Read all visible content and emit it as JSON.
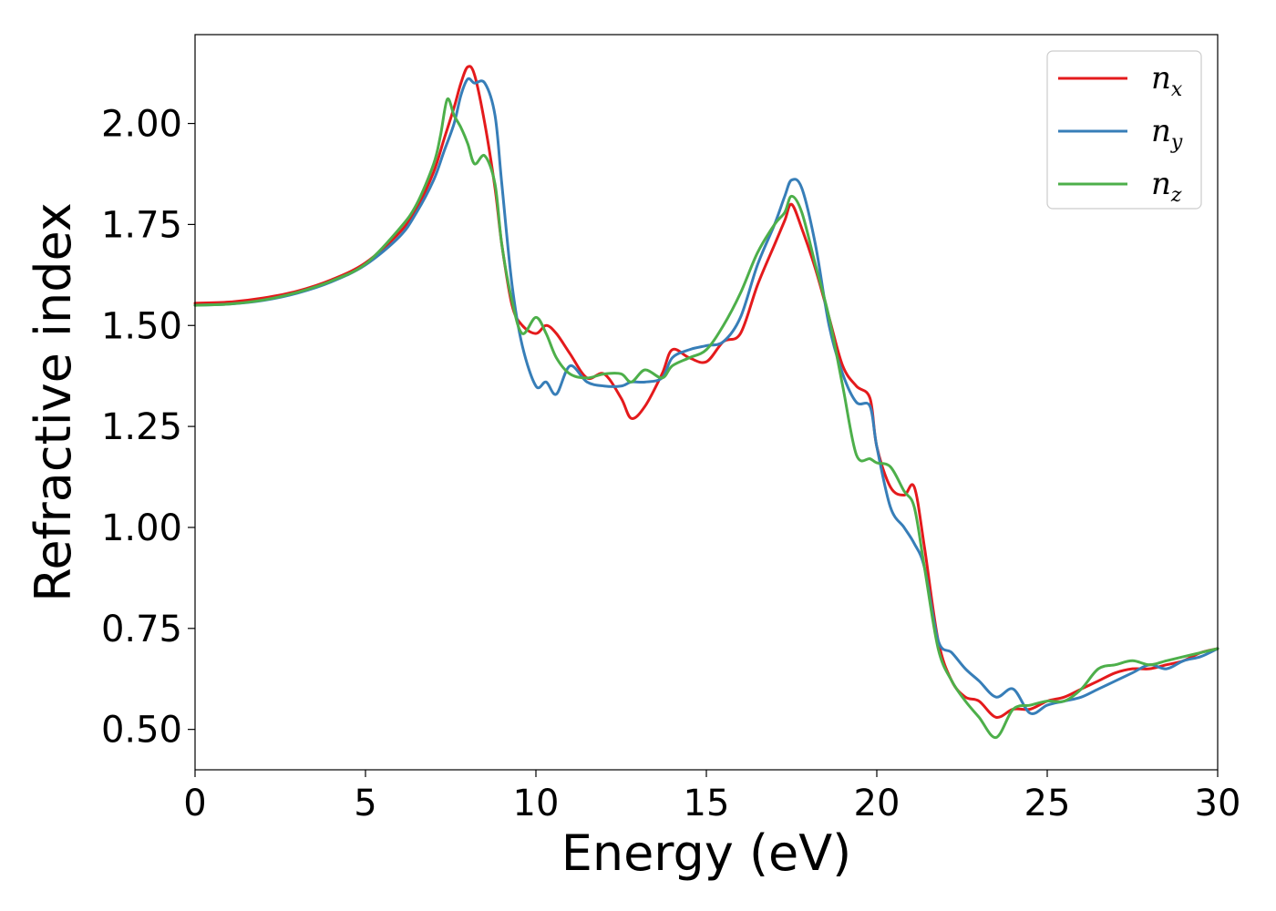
{
  "chart_data": {
    "type": "line",
    "xlabel": "Energy (eV)",
    "ylabel": "Refractive index",
    "xlim": [
      0,
      30
    ],
    "ylim": [
      0.4,
      2.22
    ],
    "xticks": [
      0,
      5,
      10,
      15,
      20,
      25,
      30
    ],
    "xtick_labels": [
      "0",
      "5",
      "10",
      "15",
      "20",
      "25",
      "30"
    ],
    "yticks": [
      0.5,
      0.75,
      1.0,
      1.25,
      1.5,
      1.75,
      2.0
    ],
    "ytick_labels": [
      "0.50",
      "0.75",
      "1.00",
      "1.25",
      "1.50",
      "1.75",
      "2.00"
    ],
    "grid": false,
    "legend_position": "top-right",
    "series": [
      {
        "name": "n",
        "subscript": "x",
        "color": "#e41a1c",
        "x": [
          0,
          1,
          2,
          3,
          4,
          5,
          6,
          6.5,
          7,
          7.3,
          7.6,
          7.8,
          8.0,
          8.2,
          8.5,
          8.8,
          9.0,
          9.3,
          9.6,
          10.0,
          10.3,
          10.6,
          11.0,
          11.5,
          12.0,
          12.5,
          12.8,
          13.2,
          13.7,
          14.0,
          14.5,
          15.0,
          15.5,
          16.0,
          16.5,
          17.0,
          17.3,
          17.5,
          17.8,
          18.2,
          18.6,
          19.0,
          19.4,
          19.8,
          20.0,
          20.4,
          20.8,
          21.1,
          21.4,
          21.8,
          22.2,
          22.6,
          23.0,
          23.5,
          24.0,
          24.5,
          25.0,
          25.5,
          26.0,
          26.5,
          27.0,
          27.5,
          28.0,
          28.5,
          29.0,
          29.5,
          30.0
        ],
        "y": [
          1.555,
          1.558,
          1.568,
          1.585,
          1.613,
          1.655,
          1.73,
          1.79,
          1.88,
          1.96,
          2.04,
          2.1,
          2.14,
          2.12,
          2.0,
          1.84,
          1.7,
          1.55,
          1.5,
          1.48,
          1.5,
          1.48,
          1.43,
          1.37,
          1.38,
          1.32,
          1.27,
          1.3,
          1.38,
          1.44,
          1.42,
          1.41,
          1.46,
          1.48,
          1.6,
          1.7,
          1.76,
          1.8,
          1.74,
          1.64,
          1.52,
          1.4,
          1.35,
          1.32,
          1.2,
          1.1,
          1.08,
          1.1,
          0.95,
          0.72,
          0.62,
          0.58,
          0.57,
          0.53,
          0.55,
          0.55,
          0.57,
          0.58,
          0.6,
          0.62,
          0.64,
          0.65,
          0.65,
          0.66,
          0.67,
          0.69,
          0.7
        ]
      },
      {
        "name": "n",
        "subscript": "y",
        "color": "#377eb8",
        "x": [
          0,
          1,
          2,
          3,
          4,
          5,
          6,
          6.5,
          7,
          7.3,
          7.6,
          7.8,
          8.0,
          8.2,
          8.5,
          8.8,
          9.0,
          9.3,
          9.6,
          10.0,
          10.3,
          10.6,
          11.0,
          11.5,
          12.0,
          12.5,
          12.8,
          13.2,
          13.7,
          14.0,
          14.5,
          15.0,
          15.5,
          16.0,
          16.5,
          17.0,
          17.3,
          17.5,
          17.8,
          18.2,
          18.6,
          19.0,
          19.4,
          19.8,
          20.0,
          20.4,
          20.8,
          21.1,
          21.4,
          21.8,
          22.2,
          22.6,
          23.0,
          23.5,
          24.0,
          24.5,
          25.0,
          25.5,
          26.0,
          26.5,
          27.0,
          27.5,
          28.0,
          28.5,
          29.0,
          29.5,
          30.0
        ],
        "y": [
          1.55,
          1.553,
          1.562,
          1.58,
          1.608,
          1.65,
          1.72,
          1.78,
          1.86,
          1.93,
          2.0,
          2.07,
          2.11,
          2.1,
          2.1,
          2.02,
          1.85,
          1.6,
          1.45,
          1.35,
          1.36,
          1.33,
          1.4,
          1.36,
          1.35,
          1.35,
          1.36,
          1.36,
          1.37,
          1.42,
          1.44,
          1.45,
          1.46,
          1.52,
          1.65,
          1.75,
          1.82,
          1.86,
          1.84,
          1.7,
          1.5,
          1.38,
          1.31,
          1.3,
          1.2,
          1.05,
          1.0,
          0.96,
          0.9,
          0.72,
          0.69,
          0.65,
          0.62,
          0.58,
          0.6,
          0.54,
          0.56,
          0.57,
          0.58,
          0.6,
          0.62,
          0.64,
          0.66,
          0.65,
          0.67,
          0.68,
          0.7
        ]
      },
      {
        "name": "n",
        "subscript": "z",
        "color": "#4daf4a",
        "x": [
          0,
          1,
          2,
          3,
          4,
          5,
          6,
          6.5,
          7,
          7.2,
          7.4,
          7.6,
          7.8,
          8.0,
          8.2,
          8.5,
          8.8,
          9.0,
          9.3,
          9.6,
          10.0,
          10.3,
          10.6,
          11.0,
          11.5,
          12.0,
          12.5,
          12.8,
          13.2,
          13.7,
          14.0,
          14.5,
          15.0,
          15.5,
          16.0,
          16.5,
          17.0,
          17.3,
          17.5,
          17.8,
          18.2,
          18.6,
          19.0,
          19.4,
          19.8,
          20.0,
          20.4,
          20.8,
          21.1,
          21.4,
          21.8,
          22.2,
          22.6,
          23.0,
          23.5,
          24.0,
          24.5,
          25.0,
          25.5,
          26.0,
          26.5,
          27.0,
          27.5,
          28.0,
          28.5,
          29.0,
          29.5,
          30.0
        ],
        "y": [
          1.55,
          1.553,
          1.563,
          1.582,
          1.61,
          1.652,
          1.74,
          1.8,
          1.9,
          1.97,
          2.06,
          2.02,
          1.99,
          1.95,
          1.9,
          1.92,
          1.85,
          1.7,
          1.56,
          1.48,
          1.52,
          1.48,
          1.42,
          1.38,
          1.37,
          1.38,
          1.38,
          1.36,
          1.39,
          1.37,
          1.4,
          1.42,
          1.44,
          1.5,
          1.58,
          1.68,
          1.75,
          1.78,
          1.82,
          1.78,
          1.65,
          1.52,
          1.35,
          1.18,
          1.17,
          1.16,
          1.15,
          1.09,
          1.05,
          0.9,
          0.7,
          0.62,
          0.57,
          0.53,
          0.48,
          0.55,
          0.56,
          0.57,
          0.57,
          0.6,
          0.65,
          0.66,
          0.67,
          0.66,
          0.67,
          0.68,
          0.69,
          0.7
        ]
      }
    ]
  }
}
